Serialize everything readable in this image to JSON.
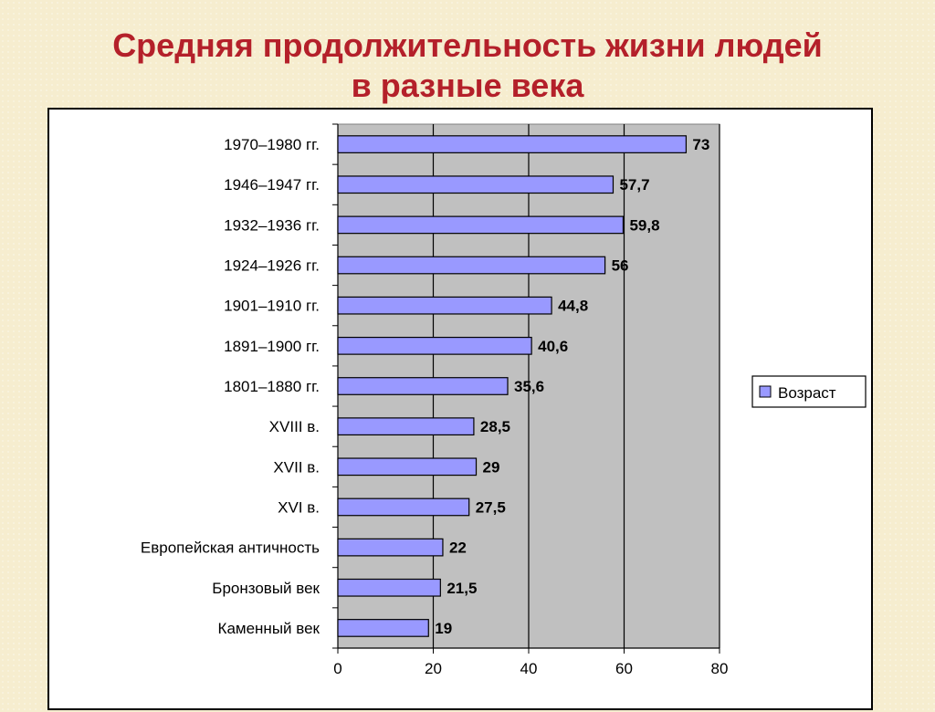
{
  "slide": {
    "title_line1": "Средняя продолжительность жизни людей",
    "title_line2": "в разные века"
  },
  "colors": {
    "title": "#b4202a",
    "bar_fill": "#9999ff",
    "plot_background": "#c0c0c0",
    "frame_background": "#ffffff"
  },
  "chart_data": {
    "type": "bar",
    "orientation": "horizontal",
    "categories": [
      "1970–1980 гг.",
      "1946–1947 гг.",
      "1932–1936 гг.",
      "1924–1926 гг.",
      "1901–1910 гг.",
      "1891–1900 гг.",
      "1801–1880 гг.",
      "XVIII в.",
      "XVII в.",
      "XVI в.",
      "Европейская античность",
      "Бронзовый век",
      "Каменный век"
    ],
    "series": [
      {
        "name": "Возраст",
        "values": [
          73,
          57.7,
          59.8,
          56,
          44.8,
          40.6,
          35.6,
          28.5,
          29,
          27.5,
          22,
          21.5,
          19
        ],
        "labels": [
          "73",
          "57,7",
          "59,8",
          "56",
          "44,8",
          "40,6",
          "35,6",
          "28,5",
          "29",
          "27,5",
          "22",
          "21,5",
          "19"
        ]
      }
    ],
    "xlim": [
      0,
      80
    ],
    "x_ticks": [
      0,
      20,
      40,
      60,
      80
    ],
    "x_tick_labels": [
      "0",
      "20",
      "40",
      "60",
      "80"
    ],
    "grid": "vertical",
    "legend_position": "right",
    "xlabel": "",
    "ylabel": ""
  }
}
